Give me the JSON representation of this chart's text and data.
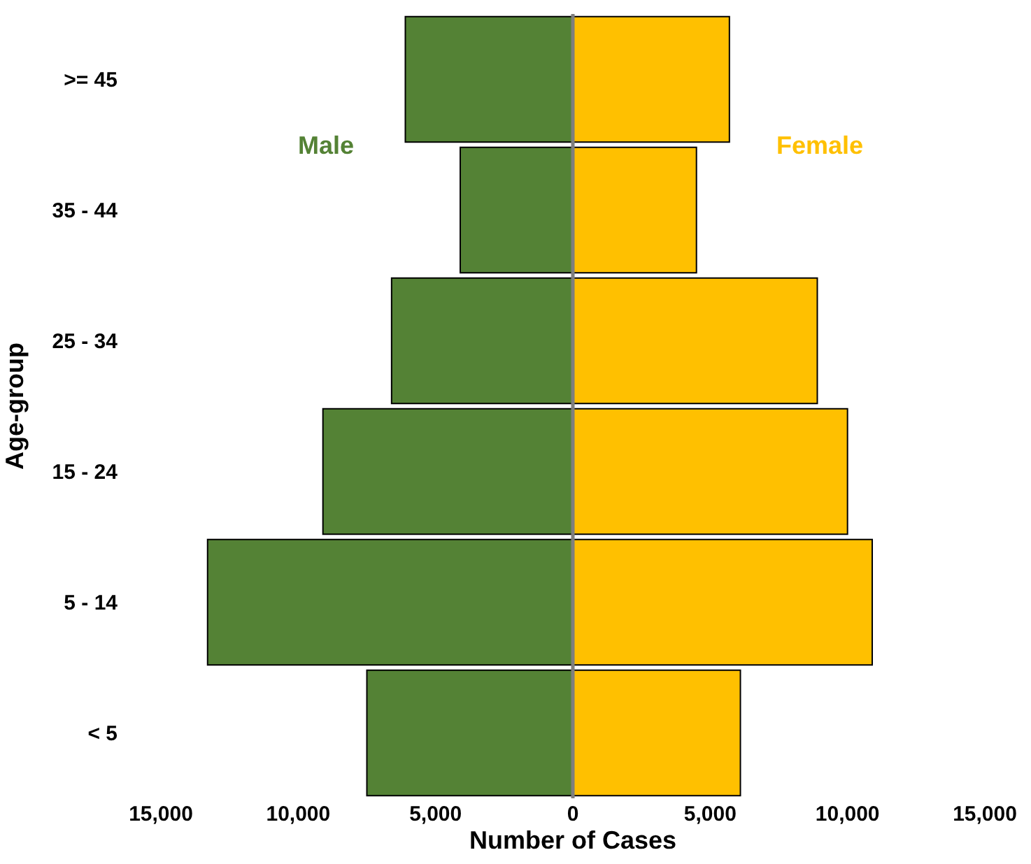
{
  "chart_data": {
    "type": "bar",
    "orientation": "horizontal",
    "xlabel": "Number of Cases",
    "ylabel": "Age-group",
    "categories": [
      ">= 45",
      "35 - 44",
      "25 - 34",
      "15 - 24",
      "5 - 14",
      "< 5"
    ],
    "series": [
      {
        "name": "Male",
        "color": "#548235",
        "values": [
          -6100,
          -4100,
          -6600,
          -9100,
          -13300,
          -7500
        ]
      },
      {
        "name": "Female",
        "color": "#ffc000",
        "values": [
          5700,
          4500,
          8900,
          10000,
          10900,
          6100
        ]
      }
    ],
    "xlim": [
      -15000,
      15000
    ],
    "xticks": [
      {
        "value": -15000,
        "label": "15,000"
      },
      {
        "value": -10000,
        "label": "10,000"
      },
      {
        "value": -5000,
        "label": "5,000"
      },
      0,
      {
        "value": 5000,
        "label": "5,000"
      },
      {
        "value": 10000,
        "label": "10,000"
      },
      {
        "value": 15000,
        "label": "15,000"
      }
    ],
    "ref_lines": [
      {
        "axis": "x",
        "value": 0,
        "color": "#7f7f7f"
      }
    ],
    "stacked": true,
    "legend": false
  }
}
